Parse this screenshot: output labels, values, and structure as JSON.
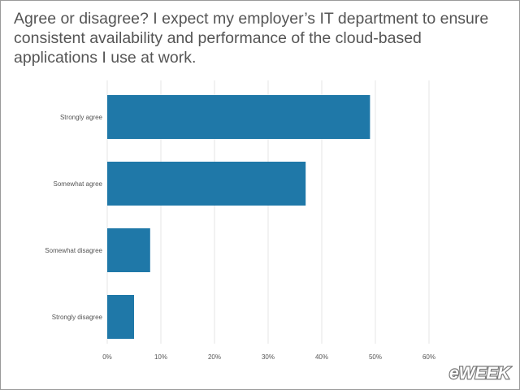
{
  "title": "Agree or disagree? I expect my employer’s IT department to ensure consistent availability and performance of the cloud-based applications I use at work.",
  "logo_text": "eWEEK",
  "colors": {
    "bar": "#1f78a8",
    "grid": "#e4e4e4",
    "text": "#555555"
  },
  "chart_data": {
    "type": "bar",
    "orientation": "horizontal",
    "title": "Agree or disagree? I expect my employer’s IT department to ensure consistent availability and performance of the cloud-based applications I use at work.",
    "categories": [
      "Strongly agree",
      "Somewhat agree",
      "Somewhat disagree",
      "Strongly disagree"
    ],
    "values": [
      49,
      37,
      8,
      5
    ],
    "unit": "%",
    "xlim": [
      0,
      60
    ],
    "xticks": [
      "0%",
      "10%",
      "20%",
      "30%",
      "40%",
      "50%",
      "60%"
    ],
    "grid": true,
    "legend": "none"
  }
}
